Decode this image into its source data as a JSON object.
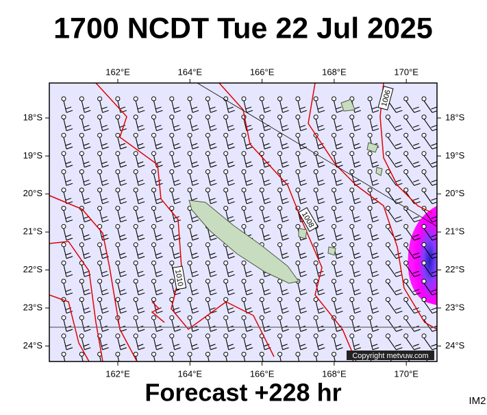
{
  "title": "1700 NCDT Tue 22 Jul 2025",
  "lon_ticks": [
    "162°E",
    "164°E",
    "166°E",
    "168°E",
    "170°E"
  ],
  "lat_ticks": [
    "18°S",
    "19°S",
    "20°S",
    "21°S",
    "22°S",
    "23°S",
    "24°S"
  ],
  "isobar_labels": [
    "1006",
    "1008",
    "1010"
  ],
  "copyright": "Copyright metvuw.com",
  "footer": "Forecast +228 hr",
  "image_id": "IM2"
}
